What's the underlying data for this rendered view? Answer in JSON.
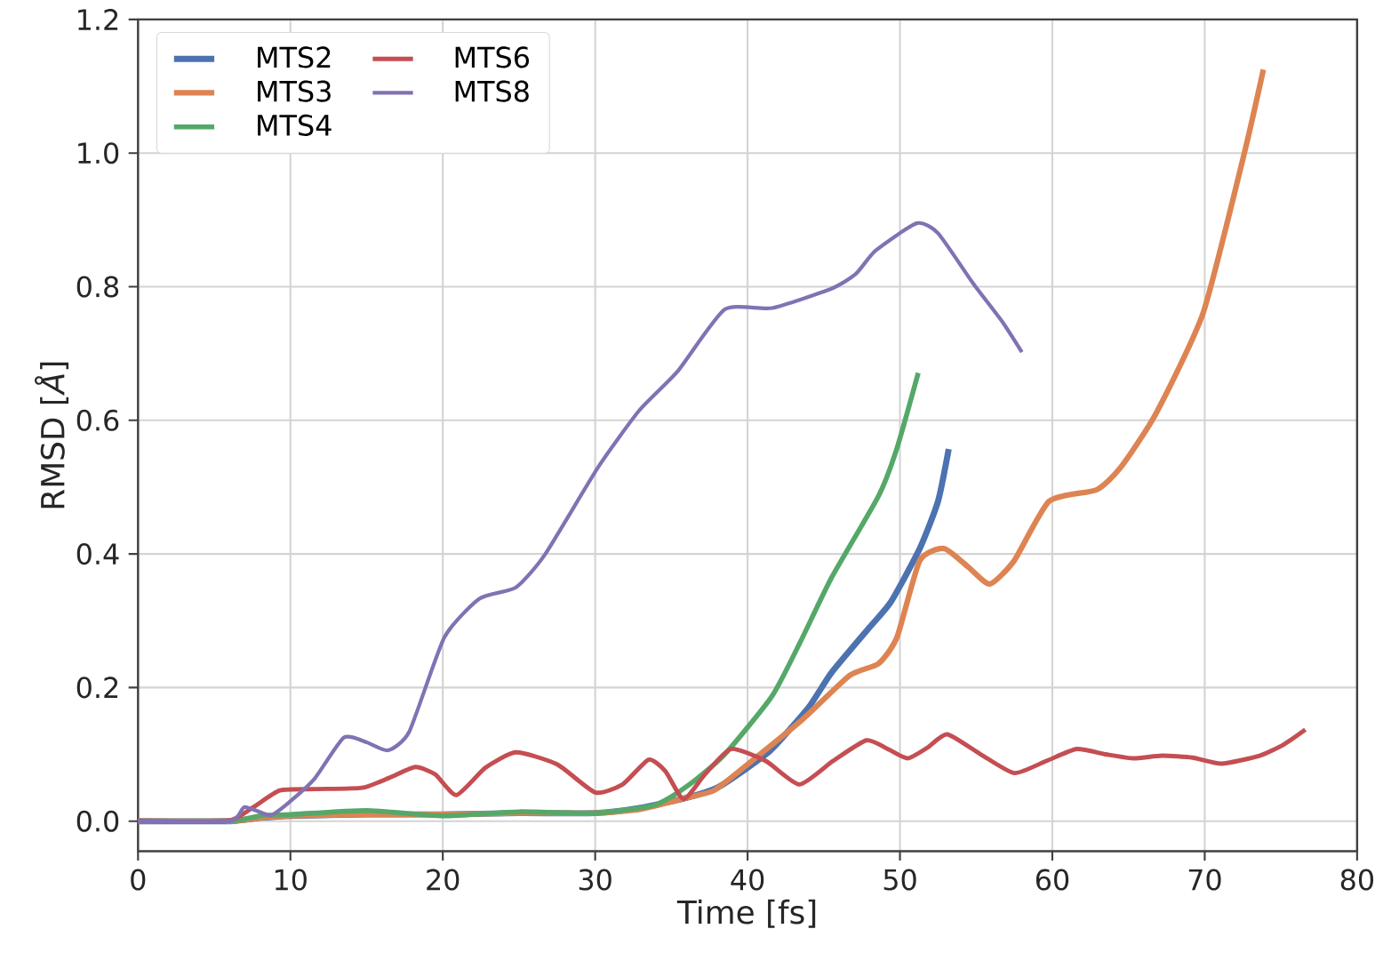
{
  "chart_data": {
    "type": "line",
    "xlabel": "Time [fs]",
    "ylabel": "RMSD [*Å*]",
    "xlim": [
      0,
      80
    ],
    "ylim": [
      -0.045,
      1.2
    ],
    "xticks": [
      0,
      10,
      20,
      30,
      40,
      50,
      60,
      70,
      80
    ],
    "yticks": [
      {
        "value": 0,
        "label": "0.0"
      },
      {
        "value": 0.2,
        "label": "0.2"
      },
      {
        "value": 0.4,
        "label": "0.4"
      },
      {
        "value": 0.6,
        "label": "0.6"
      },
      {
        "value": 0.8,
        "label": "0.8"
      },
      {
        "value": 1.0,
        "label": "1.0"
      },
      {
        "value": 1.2,
        "label": "1.2"
      }
    ],
    "grid": true,
    "legend": "top left",
    "line_style": "solid",
    "series": [
      {
        "name": "MTS2",
        "color": "#4c72b0",
        "x": [
          0,
          6,
          8,
          10,
          15,
          20,
          25,
          30,
          33,
          36,
          38,
          40,
          41.6,
          44,
          45.5,
          48,
          49.4,
          51.3,
          52.5,
          53.2
        ],
        "values": [
          0,
          0,
          0.005,
          0.008,
          0.01,
          0.01,
          0.012,
          0.012,
          0.02,
          0.035,
          0.05,
          0.08,
          0.108,
          0.17,
          0.222,
          0.29,
          0.328,
          0.408,
          0.479,
          0.557
        ]
      },
      {
        "name": "MTS3",
        "color": "#dd8452",
        "x": [
          0,
          6,
          8,
          10,
          15,
          20,
          25,
          30,
          33,
          36,
          37.8,
          40,
          43.6,
          46.7,
          48.6,
          49.8,
          51.3,
          52.9,
          54.5,
          55.9,
          57.5,
          59.8,
          62.9,
          64.5,
          66.8,
          69.9,
          72.6,
          73.85
        ],
        "values": [
          0,
          0,
          0.005,
          0.008,
          0.01,
          0.01,
          0.012,
          0.012,
          0.018,
          0.035,
          0.046,
          0.085,
          0.152,
          0.218,
          0.236,
          0.275,
          0.39,
          0.408,
          0.38,
          0.355,
          0.39,
          0.479,
          0.496,
          0.53,
          0.61,
          0.761,
          1.0,
          1.125
        ]
      },
      {
        "name": "MTS4",
        "color": "#55a868",
        "x": [
          0,
          6,
          8,
          10,
          15,
          20,
          25,
          30,
          33.9,
          36.2,
          38.5,
          41.6,
          43.5,
          45.5,
          48.6,
          49.8,
          51.2
        ],
        "values": [
          0,
          0,
          0.008,
          0.01,
          0.016,
          0.008,
          0.014,
          0.012,
          0.024,
          0.055,
          0.1,
          0.187,
          0.27,
          0.364,
          0.487,
          0.558,
          0.671
        ]
      },
      {
        "name": "MTS6",
        "color": "#c44e52",
        "x": [
          0,
          5.8,
          7.5,
          9.3,
          11.6,
          14.7,
          16.5,
          18.2,
          19.5,
          20.9,
          22.8,
          24.8,
          27.5,
          30.0,
          31.8,
          33.5,
          34.6,
          35.8,
          37.2,
          38.9,
          41.2,
          43.4,
          45.6,
          47.8,
          49.2,
          50.5,
          51.8,
          53.1,
          55.3,
          57.5,
          59.6,
          61.6,
          63.5,
          65.3,
          67.2,
          69.2,
          71.1,
          73.6,
          75.2,
          76.6
        ],
        "values": [
          0,
          0,
          0.02,
          0.046,
          0.048,
          0.05,
          0.065,
          0.081,
          0.07,
          0.039,
          0.08,
          0.103,
          0.085,
          0.043,
          0.055,
          0.092,
          0.075,
          0.033,
          0.07,
          0.108,
          0.09,
          0.055,
          0.09,
          0.121,
          0.108,
          0.094,
          0.11,
          0.13,
          0.1,
          0.072,
          0.09,
          0.108,
          0.1,
          0.094,
          0.098,
          0.095,
          0.086,
          0.098,
          0.115,
          0.137
        ]
      },
      {
        "name": "MTS8",
        "color": "#8172b3",
        "x": [
          0,
          6,
          7,
          8.7,
          10,
          11.6,
          13.5,
          15,
          16.4,
          17.8,
          20.1,
          22.4,
          24.8,
          26.7,
          30.2,
          32.9,
          35.4,
          38.5,
          41.6,
          45.5,
          47.1,
          48.4,
          51.1,
          52.5,
          54.8,
          56.7,
          58.0
        ],
        "values": [
          0,
          0,
          0.021,
          0.009,
          0.03,
          0.064,
          0.125,
          0.118,
          0.106,
          0.134,
          0.275,
          0.333,
          0.35,
          0.399,
          0.53,
          0.615,
          0.673,
          0.766,
          0.768,
          0.797,
          0.819,
          0.854,
          0.895,
          0.88,
          0.805,
          0.748,
          0.702
        ]
      }
    ]
  }
}
